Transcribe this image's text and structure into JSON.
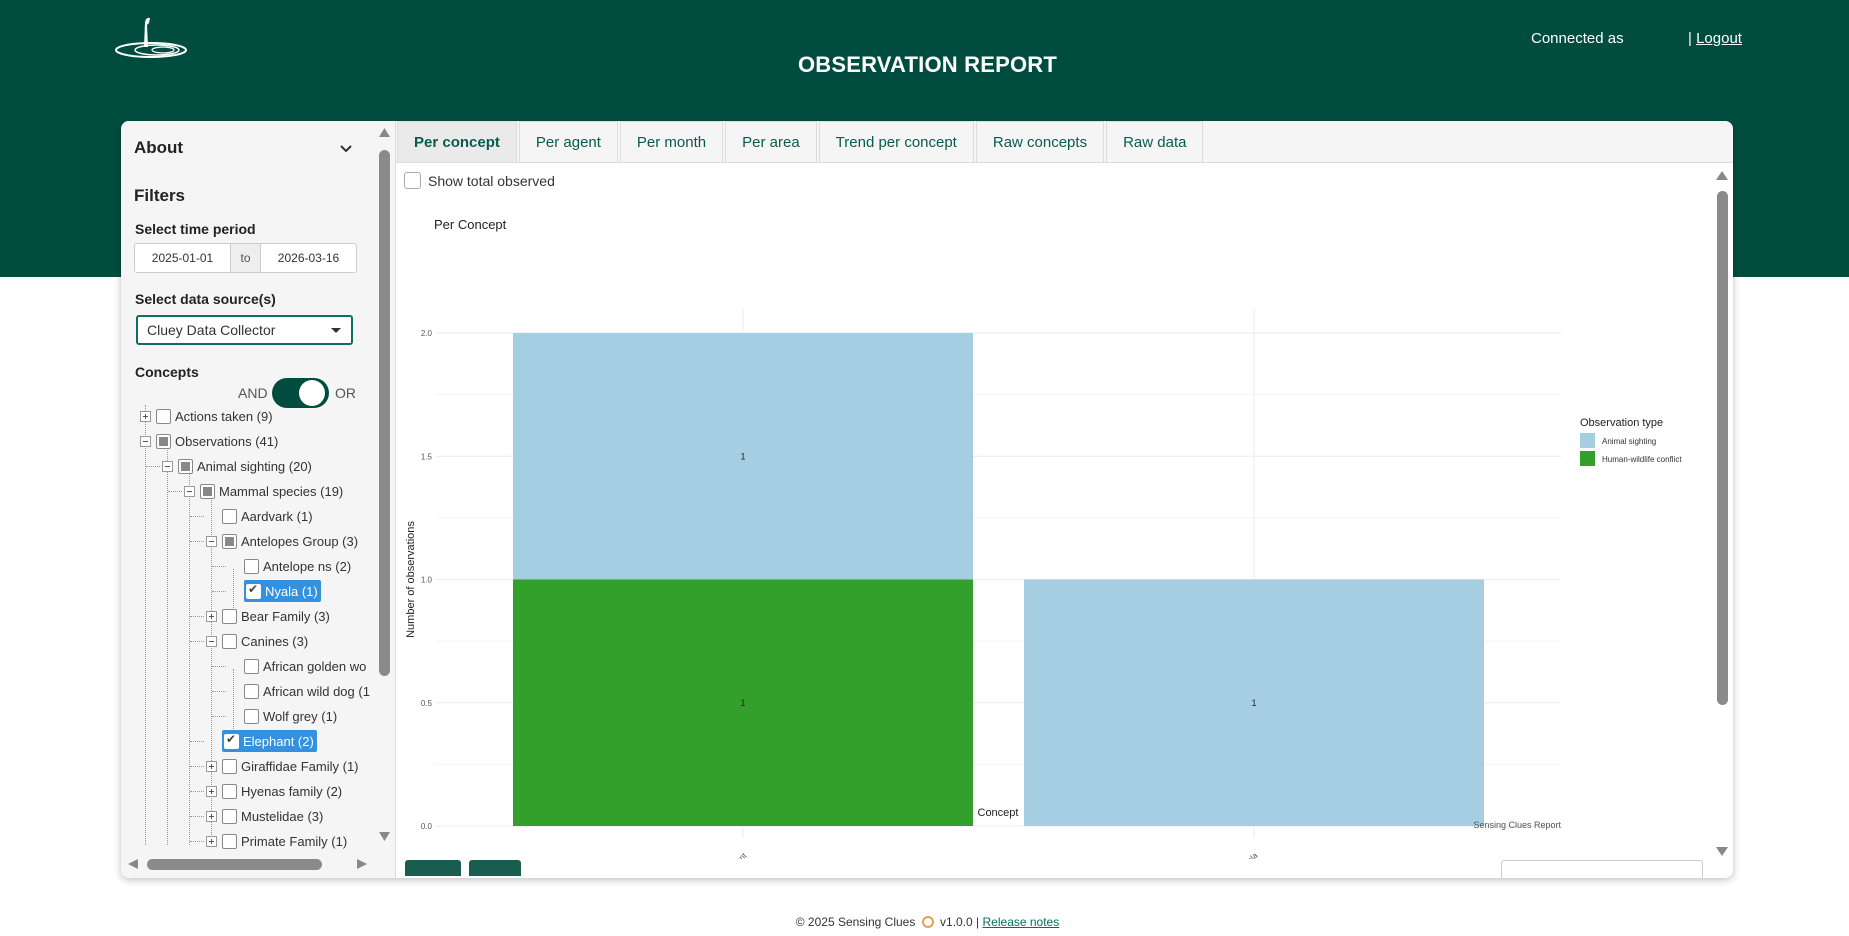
{
  "header": {
    "title": "OBSERVATION REPORT",
    "connected_as": "Connected as",
    "separator": "|",
    "logout": "Logout"
  },
  "sidebar": {
    "about": "About",
    "filters": "Filters",
    "time_period_label": "Select time period",
    "date_from": "2025-01-01",
    "date_to_sep": "to",
    "date_to": "2026-03-16",
    "data_source_label": "Select data source(s)",
    "data_source_value": "Cluey Data Collector",
    "concepts_label": "Concepts",
    "and_label": "AND",
    "or_label": "OR",
    "tree": [
      {
        "label": "Actions taken (9)",
        "state": "unchecked",
        "expander": "plus"
      },
      {
        "label": "Observations (41)",
        "state": "partial",
        "expander": "minus"
      },
      {
        "label": "Animal sighting (20)",
        "state": "partial",
        "expander": "minus"
      },
      {
        "label": "Mammal species (19)",
        "state": "partial",
        "expander": "minus"
      },
      {
        "label": "Aardvark (1)",
        "state": "unchecked",
        "expander": "none"
      },
      {
        "label": "Antelopes Group (3)",
        "state": "partial",
        "expander": "minus"
      },
      {
        "label": "Antelope ns (2)",
        "state": "unchecked",
        "expander": "none"
      },
      {
        "label": "Nyala (1)",
        "state": "checked",
        "expander": "none"
      },
      {
        "label": "Bear Family (3)",
        "state": "unchecked",
        "expander": "plus"
      },
      {
        "label": "Canines (3)",
        "state": "unchecked",
        "expander": "minus"
      },
      {
        "label": "African golden wo",
        "state": "unchecked",
        "expander": "none"
      },
      {
        "label": "African wild dog (1",
        "state": "unchecked",
        "expander": "none"
      },
      {
        "label": "Wolf grey (1)",
        "state": "unchecked",
        "expander": "none"
      },
      {
        "label": "Elephant (2)",
        "state": "checked",
        "expander": "none"
      },
      {
        "label": "Giraffidae Family (1)",
        "state": "unchecked",
        "expander": "plus"
      },
      {
        "label": "Hyenas family (2)",
        "state": "unchecked",
        "expander": "plus"
      },
      {
        "label": "Mustelidae (3)",
        "state": "unchecked",
        "expander": "plus"
      },
      {
        "label": "Primate Family (1)",
        "state": "unchecked",
        "expander": "plus"
      }
    ]
  },
  "tabs": [
    {
      "label": "Per concept",
      "active": true
    },
    {
      "label": "Per agent",
      "active": false
    },
    {
      "label": "Per month",
      "active": false
    },
    {
      "label": "Per area",
      "active": false
    },
    {
      "label": "Trend per concept",
      "active": false
    },
    {
      "label": "Raw concepts",
      "active": false
    },
    {
      "label": "Raw data",
      "active": false
    }
  ],
  "main": {
    "show_total_label": "Show total observed"
  },
  "chart_data": {
    "type": "bar",
    "stacked": true,
    "title": "Per Concept",
    "xlabel": "Concept",
    "ylabel": "Number of observations",
    "categories": [
      "Elephant",
      "Nyala"
    ],
    "series": [
      {
        "name": "Human-wildlife conflict",
        "color": "#33a02c",
        "values": [
          1,
          0
        ]
      },
      {
        "name": "Animal sighting",
        "color": "#a6cee3",
        "values": [
          1,
          1
        ]
      }
    ],
    "legend_order": [
      "Animal sighting",
      "Human-wildlife conflict"
    ],
    "legend_title": "Observation type",
    "legend_position": "right",
    "ylim": [
      0,
      2
    ],
    "yticks": [
      "0.0",
      "0.5",
      "1.0",
      "1.5",
      "2.0"
    ],
    "grid": true,
    "caption": "Sensing Clues Report"
  },
  "footer": {
    "text": "© 2025 Sensing Clues",
    "version": "v1.0.0 |",
    "release_notes": "Release notes"
  },
  "colors": {
    "brand": "#004d40",
    "selected": "#3391e0"
  }
}
